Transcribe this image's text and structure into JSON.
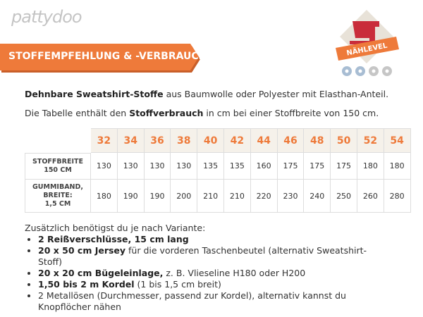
{
  "header": {
    "logo": "pattydoo",
    "banner": "STOFFEMPFEHLUNG & -VERBRAUCH",
    "badge": "NÄHLEVEL"
  },
  "intro": [
    {
      "bold": "Dehnbare Sweatshirt-Stoffe",
      "after": " aus Baumwolle oder Polyester mit Elasthan-Anteil."
    },
    {
      "before": "Die Tabelle enthält den ",
      "bold": "Stoffverbrauch",
      "after": " in cm bei einer Stoffbreite von 150 cm."
    }
  ],
  "table": {
    "sizes": [
      32,
      34,
      36,
      38,
      40,
      42,
      44,
      46,
      48,
      50,
      52,
      54
    ],
    "rows": [
      {
        "label": [
          "STOFFBREITE",
          "150 CM"
        ],
        "values": [
          130,
          130,
          130,
          130,
          135,
          135,
          160,
          175,
          175,
          175,
          180,
          180
        ]
      },
      {
        "label": [
          "GUMMIBAND,",
          "BREITE:",
          "1,5 CM"
        ],
        "values": [
          180,
          190,
          190,
          200,
          210,
          210,
          220,
          230,
          240,
          250,
          260,
          280
        ]
      }
    ]
  },
  "extras": {
    "intro": "Zusätzlich benötigst du je nach Variante:",
    "items": [
      {
        "bold": "2 Reißverschlüsse, 15 cm lang"
      },
      {
        "bold": "20 x 50 cm Jersey",
        "after": " für die vorderen Taschenbeutel (alternativ Sweatshirt-Stoff)"
      },
      {
        "bold": "20 x 20 cm Bügeleinlage,",
        "after": " z. B. Vlieseline H180 oder H200"
      },
      {
        "bold": "1,50 bis 2 m Kordel",
        "after": " (1 bis 1,5 cm breit)"
      },
      {
        "after": "2 Metallösen (Durchmesser, passend zur Kordel), alternativ kannst du Knopflöcher nähen"
      }
    ]
  }
}
